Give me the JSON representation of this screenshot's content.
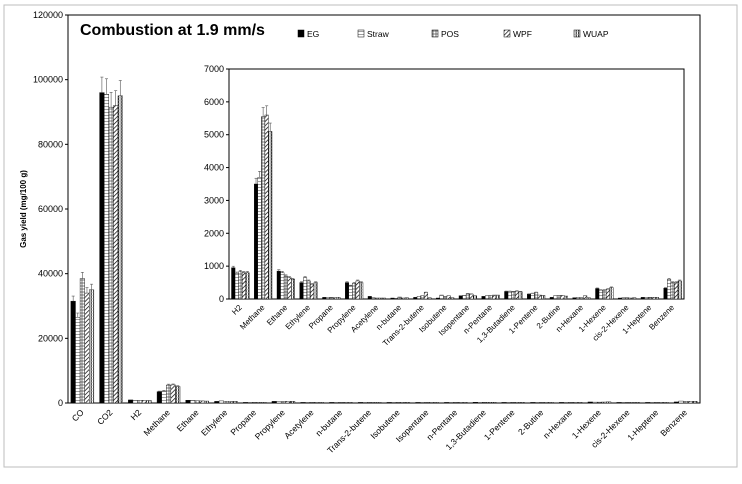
{
  "chart_data": [
    {
      "type": "bar",
      "title": "Combustion at 1.9 mm/s",
      "xlabel": "",
      "ylabel": "Gas yield (mg/100 g)",
      "ylim": [
        0,
        120000
      ],
      "yticks": [
        "0",
        "20000",
        "40000",
        "60000",
        "80000",
        "100000",
        "120000"
      ],
      "grid": false,
      "legend_position": "top-right",
      "categories": [
        "CO",
        "CO2",
        "H2",
        "Methane",
        "Ethane",
        "Ethylene",
        "Propane",
        "Propylene",
        "Acetylene",
        "n-butane",
        "Trans-2-butene",
        "Isobutene",
        "Isopentane",
        "n-Pentane",
        "1,3-Butadiene",
        "1-Pentene",
        "2-Butine",
        "n-Hexane",
        "1-Hexene",
        "cis-2-Hexene",
        "1-Heptene",
        "Benzene"
      ],
      "series": [
        {
          "name": "EG",
          "values": [
            31500,
            96000,
            950,
            3500,
            850,
            500,
            50,
            500,
            80,
            30,
            50,
            30,
            100,
            80,
            230,
            150,
            50,
            40,
            320,
            30,
            50,
            330
          ]
        },
        {
          "name": "Straw",
          "values": [
            26500,
            95500,
            780,
            3700,
            800,
            650,
            50,
            400,
            40,
            20,
            80,
            120,
            110,
            100,
            230,
            170,
            100,
            50,
            270,
            40,
            50,
            600
          ]
        },
        {
          "name": "POS",
          "values": [
            38500,
            91500,
            830,
            5550,
            700,
            550,
            50,
            480,
            30,
            60,
            100,
            80,
            160,
            110,
            220,
            200,
            110,
            40,
            270,
            40,
            50,
            500
          ]
        },
        {
          "name": "WPF",
          "values": [
            34000,
            92000,
            800,
            5600,
            650,
            450,
            40,
            550,
            30,
            30,
            200,
            100,
            150,
            120,
            240,
            120,
            110,
            100,
            300,
            30,
            50,
            500
          ]
        },
        {
          "name": "WUAP",
          "values": [
            35000,
            95000,
            800,
            5100,
            600,
            500,
            50,
            500,
            30,
            40,
            40,
            40,
            100,
            120,
            220,
            110,
            90,
            40,
            350,
            40,
            50,
            550
          ]
        }
      ]
    },
    {
      "type": "bar",
      "title": "",
      "ylim": [
        0,
        7000
      ],
      "yticks": [
        "0",
        "1000",
        "2000",
        "3000",
        "4000",
        "5000",
        "6000",
        "7000"
      ],
      "categories": [
        "H2",
        "Methane",
        "Ethane",
        "Ethylene",
        "Propane",
        "Propylene",
        "Acetylene",
        "n-butane",
        "Trans-2-butene",
        "Isobutene",
        "Isopentane",
        "n-Pentane",
        "1,3-Butadiene",
        "1-Pentene",
        "2-Butine",
        "n-Hexane",
        "1-Hexene",
        "cis-2-Hexene",
        "1-Heptene",
        "Benzene"
      ],
      "series": [
        {
          "name": "EG",
          "values": [
            950,
            3500,
            850,
            500,
            50,
            500,
            80,
            30,
            50,
            30,
            100,
            80,
            230,
            150,
            50,
            40,
            320,
            30,
            50,
            330
          ]
        },
        {
          "name": "Straw",
          "values": [
            780,
            3700,
            800,
            650,
            50,
            400,
            40,
            20,
            80,
            120,
            110,
            100,
            230,
            170,
            100,
            50,
            270,
            40,
            50,
            600
          ]
        },
        {
          "name": "POS",
          "values": [
            830,
            5550,
            700,
            550,
            50,
            480,
            30,
            60,
            100,
            80,
            160,
            110,
            220,
            200,
            110,
            40,
            270,
            40,
            50,
            500
          ]
        },
        {
          "name": "WPF",
          "values": [
            800,
            5600,
            650,
            450,
            40,
            550,
            30,
            30,
            200,
            100,
            150,
            120,
            240,
            120,
            110,
            100,
            300,
            30,
            50,
            500
          ]
        },
        {
          "name": "WUAP",
          "values": [
            800,
            5100,
            600,
            500,
            50,
            500,
            30,
            40,
            40,
            40,
            100,
            120,
            220,
            110,
            90,
            40,
            350,
            40,
            50,
            550
          ]
        }
      ]
    }
  ]
}
